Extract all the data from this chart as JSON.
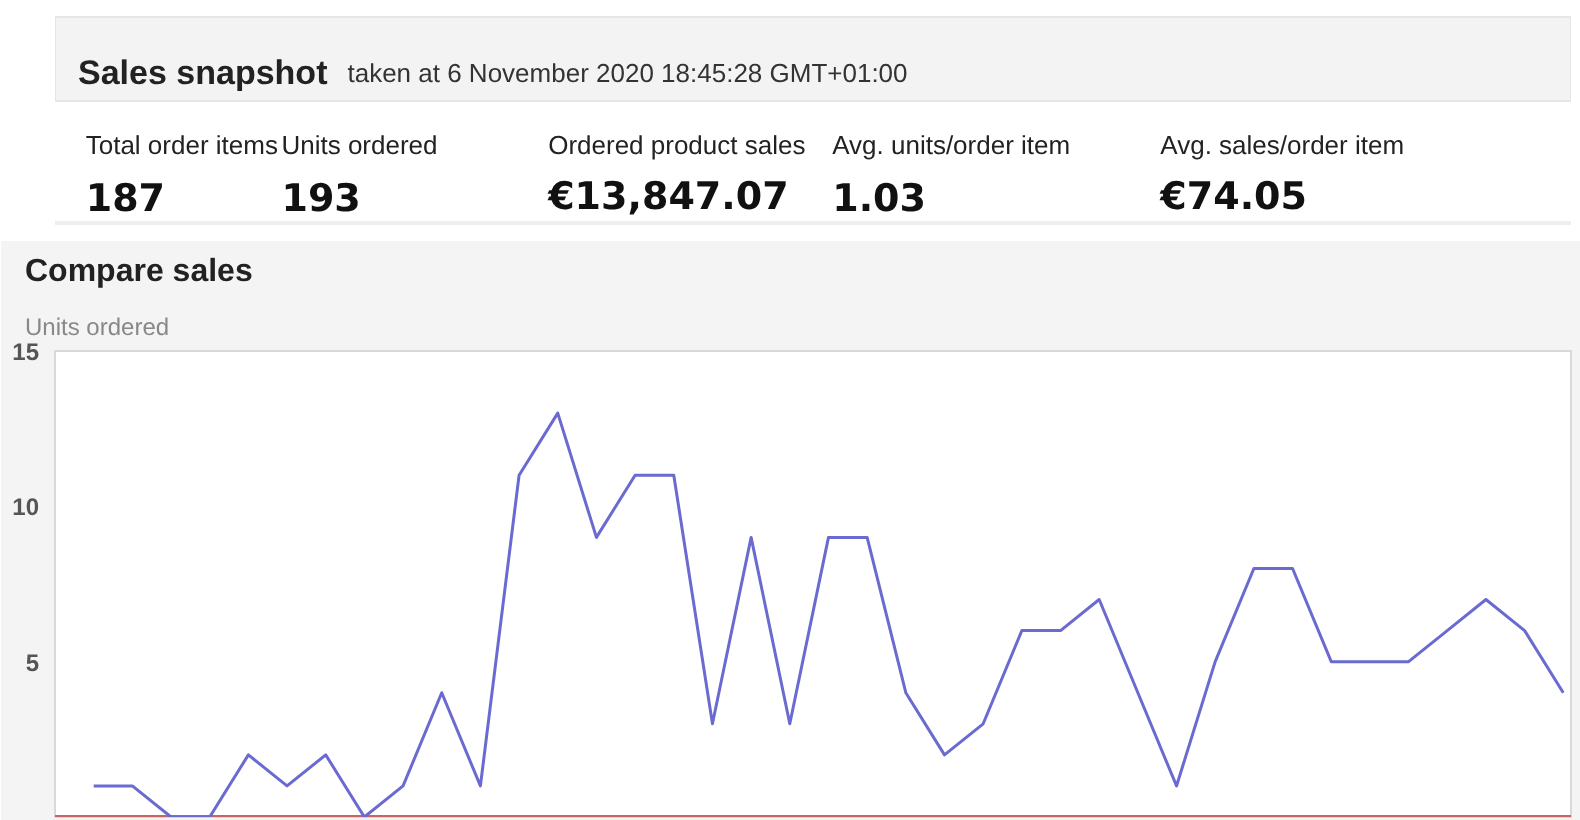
{
  "chart_data": [
    {
      "type": "other",
      "title": "Sales snapshot",
      "subtitle": "taken at 6 November 2020 18:45:28 GMT+01:00",
      "annotations": [
        "Total order items",
        "187",
        "Units ordered",
        "193",
        "Ordered product sales",
        "€13,847.07",
        "Avg. units/order item",
        "1.03",
        "Avg. sales/order item",
        "€74.05"
      ]
    },
    {
      "type": "line",
      "title": "Compare sales",
      "ylabel": "Units ordered",
      "categories": [
        null,
        null,
        null,
        null,
        null,
        null,
        null,
        null,
        null,
        null,
        null,
        null,
        null,
        null,
        null,
        null,
        null,
        null,
        null,
        null,
        null,
        null,
        null,
        null,
        null,
        null,
        null,
        null,
        null,
        null,
        null,
        null,
        null,
        null,
        null,
        null,
        null,
        null,
        null
      ],
      "series": [
        {
          "color": "#6a6ad0",
          "values": [
            1,
            1,
            0,
            0,
            2,
            1,
            2,
            0,
            1,
            4,
            1,
            11,
            13,
            9,
            11,
            11,
            3,
            9,
            3,
            9,
            9,
            4,
            2,
            3,
            6,
            6,
            7,
            4,
            1,
            5,
            8,
            8,
            5,
            5,
            5,
            6,
            7,
            6,
            4
          ]
        }
      ],
      "ylim": [
        0,
        15
      ],
      "yticks": [
        5,
        10,
        15
      ],
      "grid": false,
      "ref_lines": [
        {
          "axis": "y",
          "value": 0,
          "color": "#c86464"
        }
      ]
    }
  ]
}
